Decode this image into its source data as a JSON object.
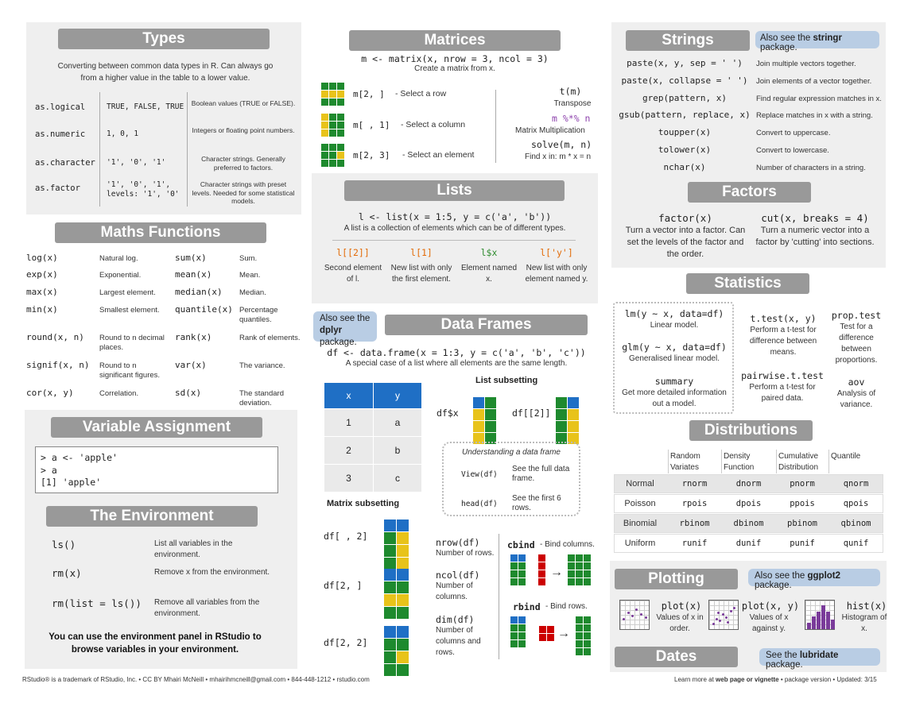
{
  "types": {
    "title": "Types",
    "intro": "Converting between common data types in R. Can always go from a higher value in the table to a lower value.",
    "rows": [
      {
        "fn": "as.logical",
        "vals": "TRUE, FALSE, TRUE",
        "desc": "Boolean values (TRUE or FALSE)."
      },
      {
        "fn": "as.numeric",
        "vals": "1, 0, 1",
        "desc": "Integers or floating point numbers."
      },
      {
        "fn": "as.character",
        "vals": "'1', '0', '1'",
        "desc": "Character strings. Generally preferred to factors."
      },
      {
        "fn": "as.factor",
        "vals": "'1', '0', '1',\nlevels: '1', '0'",
        "desc": "Character strings with preset levels. Needed for some statistical models."
      }
    ]
  },
  "maths": {
    "title": "Maths Functions",
    "rows": [
      {
        "f1": "log(x)",
        "d1": "Natural log.",
        "f2": "sum(x)",
        "d2": "Sum."
      },
      {
        "f1": "exp(x)",
        "d1": "Exponential.",
        "f2": "mean(x)",
        "d2": "Mean."
      },
      {
        "f1": "max(x)",
        "d1": "Largest element.",
        "f2": "median(x)",
        "d2": "Median."
      },
      {
        "f1": "min(x)",
        "d1": "Smallest element.",
        "f2": "quantile(x)",
        "d2": "Percentage quantiles."
      },
      {
        "f1": "round(x, n)",
        "d1": "Round to n decimal places.",
        "f2": "rank(x)",
        "d2": "Rank of elements."
      },
      {
        "f1": "signif(x, n)",
        "d1": "Round to n significant figures.",
        "f2": "var(x)",
        "d2": "The variance."
      },
      {
        "f1": "cor(x, y)",
        "d1": "Correlation.",
        "f2": "sd(x)",
        "d2": "The standard deviation."
      }
    ]
  },
  "varassign": {
    "title": "Variable Assignment",
    "lines": [
      "> a <- 'apple'",
      "> a",
      "[1] 'apple'"
    ]
  },
  "env": {
    "title": "The Environment",
    "rows": [
      {
        "fn": "ls()",
        "desc": "List all variables in the environment."
      },
      {
        "fn": "rm(x)",
        "desc": "Remove x from the environment."
      },
      {
        "fn": "rm(list = ls())",
        "desc": "Remove all variables from the environment."
      }
    ],
    "footer": "You can use the environment panel in RStudio to browse variables in your environment."
  },
  "matrices": {
    "title": "Matrices",
    "code": "m <- matrix(x, nrow = 3, ncol = 3)",
    "sub": "Create a matrix from x.",
    "rows": [
      {
        "code": "m[2, ]",
        "desc": "- Select a row"
      },
      {
        "code": "m[ , 1]",
        "desc": "- Select a  column"
      },
      {
        "code": "m[2, 3]",
        "desc": "- Select an element"
      }
    ],
    "right": {
      "t": "t(m)",
      "t_desc": "Transpose",
      "mm": "m %*% n",
      "mm_desc": "Matrix Multiplication",
      "solve": "solve(m, n)",
      "solve_desc": "Find x in: m * x = n"
    }
  },
  "lists": {
    "title": "Lists",
    "code": "l <- list(x = 1:5, y = c('a', 'b'))",
    "sub": "A list is a collection of elements which can be of different types.",
    "items": [
      {
        "code": "l[[2]]",
        "desc": "Second element of l."
      },
      {
        "code": "l[1]",
        "desc": "New list with only the first element."
      },
      {
        "code": "l$x",
        "desc": "Element named x."
      },
      {
        "code": "l['y']",
        "desc": "New list with only element named y."
      }
    ]
  },
  "dataframes": {
    "title": "Data Frames",
    "note_a": "Also see the",
    "note_b": "dplyr",
    "note_c": "package.",
    "code": "df <- data.frame(x = 1:3, y = c('a', 'b', 'c'))",
    "sub": "A special case of a list where all elements are the same length.",
    "table": {
      "headers": [
        "x",
        "y"
      ],
      "rows": [
        [
          "1",
          "a"
        ],
        [
          "2",
          "b"
        ],
        [
          "3",
          "c"
        ]
      ]
    },
    "list_sub": "List subsetting",
    "ls1": "df$x",
    "ls2": "df[[2]]",
    "understand": "Understanding a data frame",
    "view": "View(df)",
    "view_desc": "See the full data frame.",
    "head": "head(df)",
    "head_desc": "See the first 6 rows.",
    "matrix_sub": "Matrix subsetting",
    "ms": [
      "df[ , 2]",
      "df[2, ]",
      "df[2, 2]"
    ],
    "dims": [
      {
        "code": "nrow(df)",
        "desc": "Number of rows."
      },
      {
        "code": "ncol(df)",
        "desc": "Number of columns."
      },
      {
        "code": "dim(df)",
        "desc": "Number of columns and rows."
      }
    ],
    "cbind": "cbind",
    "cbind_desc": "- Bind columns.",
    "rbind": "rbind",
    "rbind_desc": "- Bind rows."
  },
  "strings": {
    "title": "Strings",
    "note_a": "Also see the",
    "note_b": "stringr",
    "note_c": "package.",
    "rows": [
      {
        "fn": "paste(x, y, sep = ' ')",
        "desc": "Join multiple vectors together."
      },
      {
        "fn": "paste(x, collapse = ' ')",
        "desc": "Join elements of a vector together."
      },
      {
        "fn": "grep(pattern, x)",
        "desc": "Find regular expression matches in x."
      },
      {
        "fn": "gsub(pattern, replace, x)",
        "desc": "Replace matches in x with a string."
      },
      {
        "fn": "toupper(x)",
        "desc": "Convert to uppercase."
      },
      {
        "fn": "tolower(x)",
        "desc": "Convert to lowercase."
      },
      {
        "fn": "nchar(x)",
        "desc": "Number of characters in a string."
      }
    ]
  },
  "factors": {
    "title": "Factors",
    "f1": "factor(x)",
    "d1": "Turn a vector into a factor. Can set the levels of the factor and the order.",
    "f2": "cut(x, breaks = 4)",
    "d2": "Turn a numeric vector into a factor by 'cutting' into sections."
  },
  "stats": {
    "title": "Statistics",
    "items": [
      {
        "code": "lm(y ~ x, data=df)",
        "desc": "Linear model."
      },
      {
        "code": "glm(y ~ x, data=df)",
        "desc": "Generalised linear model."
      },
      {
        "code": "summary",
        "desc": "Get more detailed information out a model."
      },
      {
        "code": "t.test(x, y)",
        "desc": "Perform a t-test for difference between means."
      },
      {
        "code": "pairwise.t.test",
        "desc": "Perform a t-test for paired data."
      },
      {
        "code": "prop.test",
        "desc": "Test for a difference between proportions."
      },
      {
        "code": "aov",
        "desc": "Analysis of variance."
      }
    ]
  },
  "dist": {
    "title": "Distributions",
    "headers": [
      "Random Variates",
      "Density Function",
      "Cumulative Distribution",
      "Quantile"
    ],
    "rows": [
      {
        "name": "Normal",
        "vals": [
          "rnorm",
          "dnorm",
          "pnorm",
          "qnorm"
        ]
      },
      {
        "name": "Poisson",
        "vals": [
          "rpois",
          "dpois",
          "ppois",
          "qpois"
        ]
      },
      {
        "name": "Binomial",
        "vals": [
          "rbinom",
          "dbinom",
          "pbinom",
          "qbinom"
        ]
      },
      {
        "name": "Uniform",
        "vals": [
          "runif",
          "dunif",
          "punif",
          "qunif"
        ]
      }
    ]
  },
  "plotting": {
    "title": "Plotting",
    "note_a": "Also see the",
    "note_b": "ggplot2",
    "note_c": "package.",
    "items": [
      {
        "code": "plot(x)",
        "desc": "Values of x in order."
      },
      {
        "code": "plot(x, y)",
        "desc": "Values of x against y."
      },
      {
        "code": "hist(x)",
        "desc": "Histogram of x."
      }
    ]
  },
  "dates": {
    "title": "Dates",
    "note_a": "See the",
    "note_b": "lubridate",
    "note_c": "package."
  },
  "footer": {
    "left": "RStudio® is a trademark of RStudio, Inc.  •  CC BY Mhairi McNeill  •  mhairihmcneill@gmail.com  •  844-448-1212 • rstudio.com",
    "right_a": "Learn more at",
    "right_b": "web page or vignette",
    "right_c": "•  package  version  •  Updated: 3/15"
  },
  "colors": {
    "header": "#999999",
    "panel": "#efefef",
    "note": "#b9cde4",
    "blue": "#1f6fc5",
    "yellow": "#e8c31a",
    "red": "#cc0000",
    "green": "#1e8a2e",
    "grid": "#dddddd"
  }
}
